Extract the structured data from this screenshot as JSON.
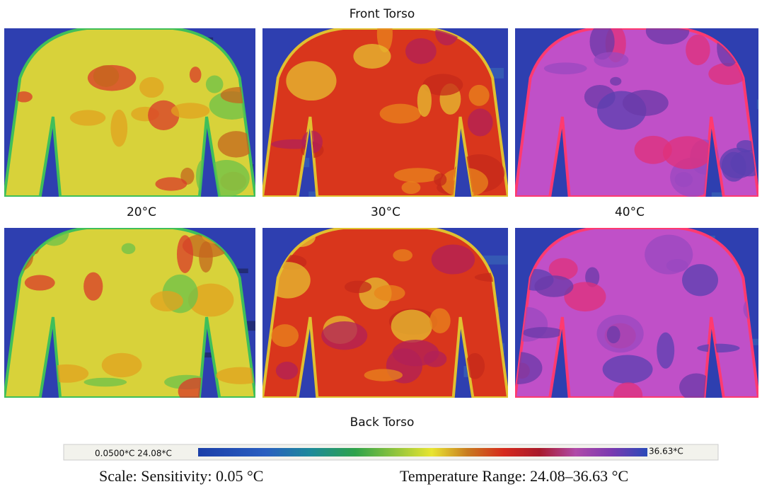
{
  "figure": {
    "top_label": "Front Torso",
    "temperatures": [
      "20°C",
      "30°C",
      "40°C"
    ],
    "bottom_label": "Back Torso",
    "colorbar": {
      "left_label": "0.0500*C 24.08*C",
      "right_label": "36.63*C"
    },
    "caption": {
      "sensitivity": "Scale: Sensitivity: 0.05 °C",
      "range": "Temperature Range: 24.08–36.63 °C"
    }
  }
}
